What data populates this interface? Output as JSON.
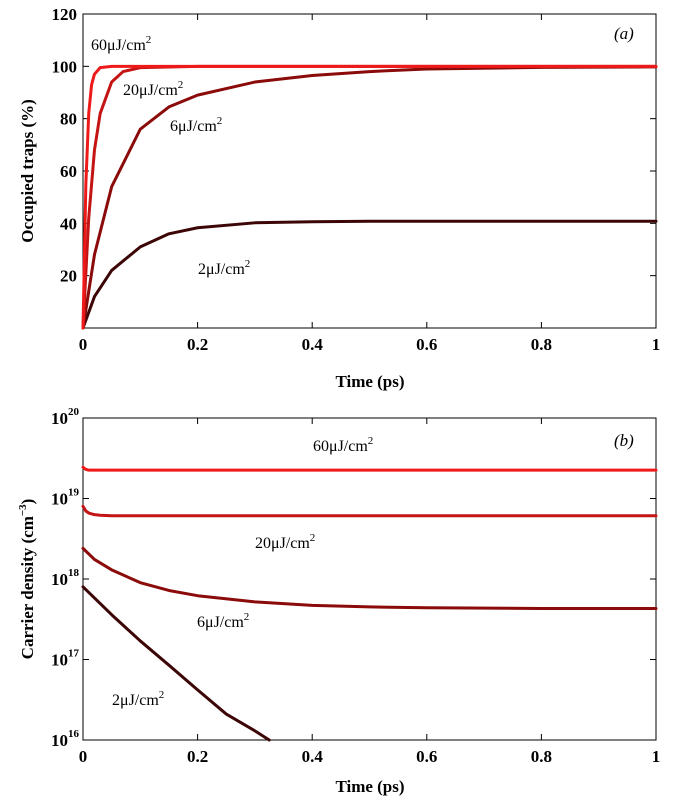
{
  "chart_data": [
    {
      "type": "line",
      "panel_label": "(a)",
      "xlabel": "Time (ps)",
      "ylabel": "Occupied traps (%)",
      "xlim": [
        0,
        1
      ],
      "ylim": [
        0,
        120
      ],
      "yscale": "linear",
      "xticks": [
        "0",
        "0.2",
        "0.4",
        "0.6",
        "0.8",
        "1"
      ],
      "yticks": [
        "20",
        "40",
        "60",
        "80",
        "100",
        "120"
      ],
      "grid": false,
      "series": [
        {
          "name": "2μJ/cm²",
          "color": "#3d0606",
          "x": [
            0,
            0.02,
            0.05,
            0.1,
            0.15,
            0.2,
            0.3,
            0.4,
            0.5,
            0.6,
            0.8,
            1.0
          ],
          "y": [
            0,
            12,
            22,
            31,
            36,
            38.3,
            40.2,
            40.6,
            40.8,
            40.8,
            40.8,
            40.8
          ]
        },
        {
          "name": "6μJ/cm²",
          "color": "#8b0a0a",
          "x": [
            0,
            0.02,
            0.05,
            0.1,
            0.15,
            0.2,
            0.3,
            0.4,
            0.5,
            0.6,
            0.8,
            1.0
          ],
          "y": [
            0,
            28,
            54,
            76,
            84.5,
            89,
            94,
            96.5,
            98,
            99,
            99.6,
            99.8
          ]
        },
        {
          "name": "20μJ/cm²",
          "color": "#c41414",
          "x": [
            0,
            0.01,
            0.02,
            0.03,
            0.05,
            0.07,
            0.1,
            0.2,
            0.4,
            1.0
          ],
          "y": [
            0,
            42,
            68,
            82,
            94,
            98,
            99.5,
            100,
            100,
            100
          ]
        },
        {
          "name": "60μJ/cm²",
          "color": "#ee1a1a",
          "x": [
            0,
            0.005,
            0.01,
            0.015,
            0.02,
            0.03,
            0.05,
            0.1,
            1.0
          ],
          "y": [
            0,
            55,
            82,
            93,
            97,
            99.5,
            100,
            100,
            100
          ]
        }
      ],
      "annotations": [
        {
          "text": "60μJ/cm",
          "sup": "2"
        },
        {
          "text": "20μJ/cm",
          "sup": "2"
        },
        {
          "text": "6μJ/cm",
          "sup": "2"
        },
        {
          "text": "2μJ/cm",
          "sup": "2"
        }
      ]
    },
    {
      "type": "line",
      "panel_label": "(b)",
      "xlabel": "Time (ps)",
      "ylabel": "Carrier density (cm",
      "ylabel_sup": "−3",
      "ylabel_tail": ")",
      "xlim": [
        0,
        1
      ],
      "ylim": [
        1e+16,
        1e+20
      ],
      "yscale": "log",
      "xticks": [
        "0",
        "0.2",
        "0.4",
        "0.6",
        "0.8",
        "1"
      ],
      "yticks": [
        {
          "base": "10",
          "exp": "16"
        },
        {
          "base": "10",
          "exp": "17"
        },
        {
          "base": "10",
          "exp": "18"
        },
        {
          "base": "10",
          "exp": "19"
        },
        {
          "base": "10",
          "exp": "20"
        }
      ],
      "grid": false,
      "series": [
        {
          "name": "60μJ/cm²",
          "color": "#ee1a1a",
          "x": [
            0,
            0.005,
            0.01,
            0.02,
            0.05,
            1.0
          ],
          "y": [
            2.45e+19,
            2.3e+19,
            2.25e+19,
            2.25e+19,
            2.25e+19,
            2.25e+19
          ]
        },
        {
          "name": "20μJ/cm²",
          "color": "#c41414",
          "x": [
            0,
            0.005,
            0.01,
            0.02,
            0.03,
            0.05,
            0.1,
            1.0
          ],
          "y": [
            8e+18,
            7e+18,
            6.6e+18,
            6.3e+18,
            6.2e+18,
            6.1e+18,
            6.1e+18,
            6.1e+18
          ]
        },
        {
          "name": "6μJ/cm²",
          "color": "#8b0a0a",
          "x": [
            0,
            0.02,
            0.05,
            0.1,
            0.15,
            0.2,
            0.3,
            0.4,
            0.5,
            0.6,
            0.8,
            1.0
          ],
          "y": [
            2.4e+18,
            1.75e+18,
            1.3e+18,
            9e+17,
            7.2e+17,
            6.2e+17,
            5.2e+17,
            4.7e+17,
            4.5e+17,
            4.4e+17,
            4.3e+17,
            4.3e+17
          ]
        },
        {
          "name": "2μJ/cm²",
          "color": "#3d0606",
          "x": [
            0,
            0.05,
            0.1,
            0.15,
            0.2,
            0.25,
            0.3,
            0.325
          ],
          "y": [
            8e+17,
            3.6e+17,
            1.7e+17,
            8.5e+16,
            4.2e+16,
            2.1e+16,
            1.3e+16,
            1e+16
          ]
        }
      ],
      "annotations": [
        {
          "text": "60μJ/cm",
          "sup": "2"
        },
        {
          "text": "20μJ/cm",
          "sup": "2"
        },
        {
          "text": "6μJ/cm",
          "sup": "2"
        },
        {
          "text": "2μJ/cm",
          "sup": "2"
        }
      ]
    }
  ]
}
